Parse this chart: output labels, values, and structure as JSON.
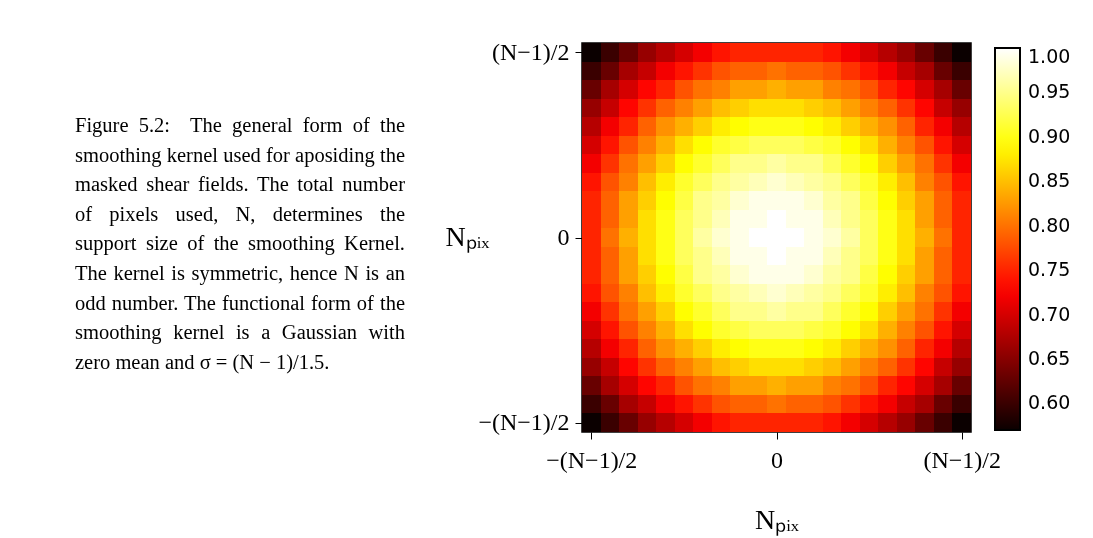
{
  "chart_data": {
    "type": "heatmap",
    "xlabel": "Nₚᵢₓ",
    "ylabel": "Nₚᵢₓ",
    "categories": [
      "−(N−1)/2",
      null,
      null,
      null,
      null,
      null,
      null,
      null,
      null,
      null,
      "0",
      null,
      null,
      null,
      null,
      null,
      null,
      null,
      null,
      null,
      "(N−1)/2"
    ],
    "y_categories": [
      "(N−1)/2",
      null,
      null,
      null,
      null,
      null,
      null,
      null,
      null,
      null,
      "0",
      null,
      null,
      null,
      null,
      null,
      null,
      null,
      null,
      null,
      "−(N−1)/2"
    ],
    "cells": [
      [
        0.57,
        0.6,
        0.63,
        0.66,
        0.68,
        0.7,
        0.72,
        0.74,
        0.75,
        0.75,
        0.75,
        0.75,
        0.75,
        0.74,
        0.72,
        0.7,
        0.68,
        0.66,
        0.63,
        0.6,
        0.57
      ],
      [
        0.6,
        0.63,
        0.67,
        0.69,
        0.72,
        0.74,
        0.76,
        0.78,
        0.79,
        0.79,
        0.8,
        0.79,
        0.79,
        0.78,
        0.76,
        0.74,
        0.72,
        0.69,
        0.67,
        0.63,
        0.6
      ],
      [
        0.63,
        0.67,
        0.7,
        0.73,
        0.75,
        0.78,
        0.8,
        0.81,
        0.83,
        0.83,
        0.84,
        0.83,
        0.83,
        0.81,
        0.8,
        0.78,
        0.75,
        0.73,
        0.7,
        0.67,
        0.63
      ],
      [
        0.66,
        0.69,
        0.73,
        0.76,
        0.79,
        0.81,
        0.83,
        0.85,
        0.86,
        0.87,
        0.87,
        0.87,
        0.86,
        0.85,
        0.83,
        0.81,
        0.79,
        0.76,
        0.73,
        0.69,
        0.66
      ],
      [
        0.68,
        0.72,
        0.75,
        0.79,
        0.82,
        0.84,
        0.86,
        0.88,
        0.89,
        0.9,
        0.9,
        0.9,
        0.89,
        0.88,
        0.86,
        0.84,
        0.82,
        0.79,
        0.75,
        0.72,
        0.68
      ],
      [
        0.7,
        0.74,
        0.78,
        0.81,
        0.84,
        0.87,
        0.89,
        0.91,
        0.92,
        0.93,
        0.93,
        0.93,
        0.92,
        0.91,
        0.89,
        0.87,
        0.84,
        0.81,
        0.78,
        0.74,
        0.7
      ],
      [
        0.72,
        0.76,
        0.8,
        0.83,
        0.86,
        0.89,
        0.91,
        0.93,
        0.95,
        0.95,
        0.96,
        0.95,
        0.95,
        0.93,
        0.91,
        0.89,
        0.86,
        0.83,
        0.8,
        0.76,
        0.72
      ],
      [
        0.74,
        0.78,
        0.81,
        0.85,
        0.88,
        0.91,
        0.93,
        0.95,
        0.96,
        0.97,
        0.98,
        0.97,
        0.96,
        0.95,
        0.93,
        0.91,
        0.88,
        0.85,
        0.81,
        0.78,
        0.74
      ],
      [
        0.75,
        0.79,
        0.83,
        0.86,
        0.89,
        0.92,
        0.95,
        0.96,
        0.98,
        0.99,
        0.99,
        0.99,
        0.98,
        0.96,
        0.95,
        0.92,
        0.89,
        0.86,
        0.83,
        0.79,
        0.75
      ],
      [
        0.75,
        0.79,
        0.83,
        0.87,
        0.9,
        0.93,
        0.95,
        0.97,
        0.99,
        0.99,
        1.0,
        0.99,
        0.99,
        0.97,
        0.95,
        0.93,
        0.9,
        0.87,
        0.83,
        0.79,
        0.75
      ],
      [
        0.75,
        0.8,
        0.84,
        0.87,
        0.9,
        0.93,
        0.96,
        0.98,
        0.99,
        1.0,
        1.0,
        1.0,
        0.99,
        0.98,
        0.96,
        0.93,
        0.9,
        0.87,
        0.84,
        0.8,
        0.75
      ],
      [
        0.75,
        0.79,
        0.83,
        0.87,
        0.9,
        0.93,
        0.95,
        0.97,
        0.99,
        0.99,
        1.0,
        0.99,
        0.99,
        0.97,
        0.95,
        0.93,
        0.9,
        0.87,
        0.83,
        0.79,
        0.75
      ],
      [
        0.75,
        0.79,
        0.83,
        0.86,
        0.89,
        0.92,
        0.95,
        0.96,
        0.98,
        0.99,
        0.99,
        0.99,
        0.98,
        0.96,
        0.95,
        0.92,
        0.89,
        0.86,
        0.83,
        0.79,
        0.75
      ],
      [
        0.74,
        0.78,
        0.81,
        0.85,
        0.88,
        0.91,
        0.93,
        0.95,
        0.96,
        0.97,
        0.98,
        0.97,
        0.96,
        0.95,
        0.93,
        0.91,
        0.88,
        0.85,
        0.81,
        0.78,
        0.74
      ],
      [
        0.72,
        0.76,
        0.8,
        0.83,
        0.86,
        0.89,
        0.91,
        0.93,
        0.95,
        0.95,
        0.96,
        0.95,
        0.95,
        0.93,
        0.91,
        0.89,
        0.86,
        0.83,
        0.8,
        0.76,
        0.72
      ],
      [
        0.7,
        0.74,
        0.78,
        0.81,
        0.84,
        0.87,
        0.89,
        0.91,
        0.92,
        0.93,
        0.93,
        0.93,
        0.92,
        0.91,
        0.89,
        0.87,
        0.84,
        0.81,
        0.78,
        0.74,
        0.7
      ],
      [
        0.68,
        0.72,
        0.75,
        0.79,
        0.82,
        0.84,
        0.86,
        0.88,
        0.89,
        0.9,
        0.9,
        0.9,
        0.89,
        0.88,
        0.86,
        0.84,
        0.82,
        0.79,
        0.75,
        0.72,
        0.68
      ],
      [
        0.66,
        0.69,
        0.73,
        0.76,
        0.79,
        0.81,
        0.83,
        0.85,
        0.86,
        0.87,
        0.87,
        0.87,
        0.86,
        0.85,
        0.83,
        0.81,
        0.79,
        0.76,
        0.73,
        0.69,
        0.66
      ],
      [
        0.63,
        0.67,
        0.7,
        0.73,
        0.75,
        0.78,
        0.8,
        0.81,
        0.83,
        0.83,
        0.84,
        0.83,
        0.83,
        0.81,
        0.8,
        0.78,
        0.75,
        0.73,
        0.7,
        0.67,
        0.63
      ],
      [
        0.6,
        0.63,
        0.67,
        0.69,
        0.72,
        0.74,
        0.76,
        0.78,
        0.79,
        0.79,
        0.8,
        0.79,
        0.79,
        0.78,
        0.76,
        0.74,
        0.72,
        0.69,
        0.67,
        0.63,
        0.6
      ],
      [
        0.57,
        0.6,
        0.63,
        0.66,
        0.68,
        0.7,
        0.72,
        0.74,
        0.75,
        0.75,
        0.75,
        0.75,
        0.75,
        0.74,
        0.72,
        0.7,
        0.68,
        0.66,
        0.63,
        0.6,
        0.57
      ]
    ],
    "clim": [
      0.57,
      1.0
    ],
    "cticks": [
      {
        "value": 1,
        "label": "1.00"
      },
      0.95,
      {
        "value": 0.9,
        "label": "0.90"
      },
      0.85,
      {
        "value": 0.8,
        "label": "0.80"
      },
      0.75,
      {
        "value": 0.7,
        "label": "0.70"
      },
      0.65,
      {
        "value": 0.6,
        "label": "0.60"
      }
    ],
    "annotations": [
      "Figure 5.2:  The general form of the smoothing kernel used for aposiding the masked shear fields. The total number of pixels used, N, determines the support size of the smoothing Kernel. The kernel is symmetric, hence N is an odd number. The functional form of the smoothing kernel is a Gaussian with zero mean and σ = (N − 1)/1.5."
    ]
  }
}
